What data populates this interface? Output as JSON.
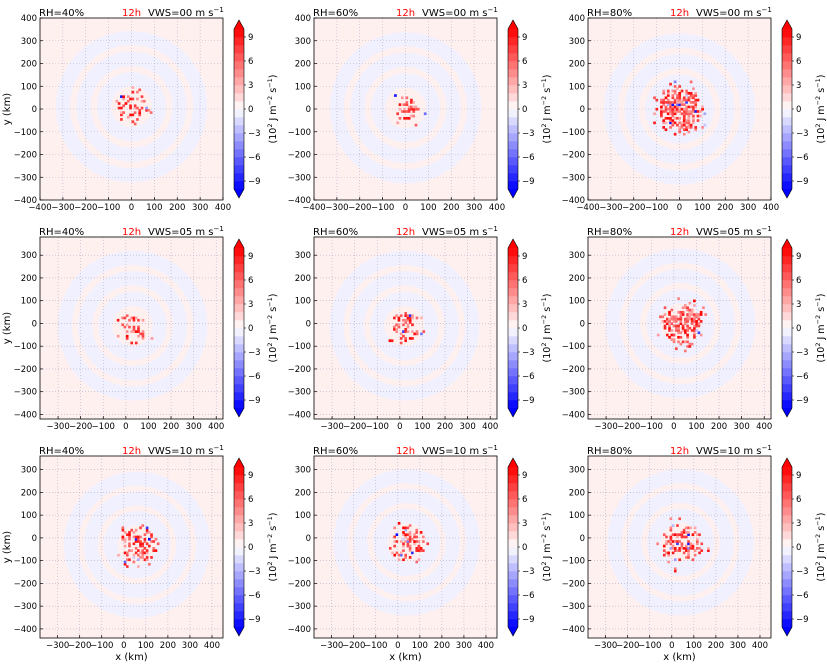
{
  "figure": {
    "time_label": "12h",
    "xlabel": "x (km)",
    "ylabel": "y (km)",
    "colorbar_label_base": "(10",
    "colorbar_label_exp": "2",
    "colorbar_label_unit": " J m",
    "colorbar_label_exp2": "−2",
    "colorbar_label_unit2": " s",
    "colorbar_label_exp3": "−1",
    "colorbar_label_end": ")",
    "colors": {
      "positive": "#ff0000",
      "negative": "#0000ff",
      "background_positive": "#fff0f0",
      "background_negative": "#eef0ff",
      "time_label": "#ff0000",
      "grid": "#b0b0c8"
    }
  },
  "colorbar": {
    "ticks": [
      "9",
      "6",
      "3",
      "0",
      "−3",
      "−6",
      "−9"
    ],
    "tick_values": [
      9,
      6,
      3,
      0,
      -3,
      -6,
      -9
    ],
    "levels": [
      -10,
      -9,
      -8,
      -7,
      -6,
      -5,
      -4,
      -3,
      -2,
      -1,
      0,
      1,
      2,
      3,
      4,
      5,
      6,
      7,
      8,
      9,
      10
    ]
  },
  "chart_data": [
    {
      "type": "heatmap",
      "rh": "RH=40%",
      "vws": "VWS=00 m s",
      "vws_exp": "−1",
      "xlim": [
        -400,
        400
      ],
      "ylim": [
        -400,
        400
      ],
      "xticks": [
        "−400",
        "−300",
        "−200",
        "−100",
        "0",
        "100",
        "200",
        "300",
        "400"
      ],
      "xtick_values": [
        -400,
        -300,
        -200,
        -100,
        0,
        100,
        200,
        300,
        400
      ],
      "yticks": [
        "400",
        "300",
        "200",
        "100",
        "0",
        "−100",
        "−200",
        "−300",
        "−400"
      ],
      "ytick_values": [
        400,
        300,
        200,
        100,
        0,
        -100,
        -200,
        -300,
        -400
      ],
      "core": {
        "cx": 0,
        "cy": 10,
        "r": 60,
        "density": 0.45
      },
      "show_xticklabels": true,
      "show_ylabel": true,
      "show_xlabel": false
    },
    {
      "type": "heatmap",
      "rh": "RH=60%",
      "vws": "VWS=00 m s",
      "vws_exp": "−1",
      "xlim": [
        -400,
        400
      ],
      "ylim": [
        -400,
        400
      ],
      "xticks": [
        "−400",
        "−300",
        "−200",
        "−100",
        "0",
        "100",
        "200",
        "300",
        "400"
      ],
      "xtick_values": [
        -400,
        -300,
        -200,
        -100,
        0,
        100,
        200,
        300,
        400
      ],
      "yticks": [
        "400",
        "300",
        "200",
        "100",
        "0",
        "−100",
        "−200",
        "−300",
        "−400"
      ],
      "ytick_values": [
        400,
        300,
        200,
        100,
        0,
        -100,
        -200,
        -300,
        -400
      ],
      "core": {
        "cx": 0,
        "cy": 5,
        "r": 50,
        "density": 0.4
      },
      "show_xticklabels": true,
      "show_ylabel": false,
      "show_xlabel": false
    },
    {
      "type": "heatmap",
      "rh": "RH=80%",
      "vws": "VWS=00 m s",
      "vws_exp": "−1",
      "xlim": [
        -400,
        400
      ],
      "ylim": [
        -400,
        400
      ],
      "xticks": [
        "−400",
        "−300",
        "−200",
        "−100",
        "0",
        "100",
        "200",
        "300",
        "400"
      ],
      "xtick_values": [
        -400,
        -300,
        -200,
        -100,
        0,
        100,
        200,
        300,
        400
      ],
      "yticks": [
        "400",
        "300",
        "200",
        "100",
        "0",
        "−100",
        "−200",
        "−300",
        "−400"
      ],
      "ytick_values": [
        400,
        300,
        200,
        100,
        0,
        -100,
        -200,
        -300,
        -400
      ],
      "core": {
        "cx": 0,
        "cy": 0,
        "r": 95,
        "density": 0.85
      },
      "show_xticklabels": true,
      "show_ylabel": false,
      "show_xlabel": false
    },
    {
      "type": "heatmap",
      "rh": "RH=40%",
      "vws": "VWS=05 m s",
      "vws_exp": "−1",
      "xlim": [
        -380,
        430
      ],
      "ylim": [
        -420,
        380
      ],
      "xticks": [
        "−300",
        "−200",
        "−100",
        "0",
        "100",
        "200",
        "300",
        "400"
      ],
      "xtick_values": [
        -300,
        -200,
        -100,
        0,
        100,
        200,
        300,
        400
      ],
      "yticks": [
        "300",
        "200",
        "100",
        "0",
        "−100",
        "−200",
        "−300",
        "−400"
      ],
      "ytick_values": [
        300,
        200,
        100,
        0,
        -100,
        -200,
        -300,
        -400
      ],
      "core": {
        "cx": 30,
        "cy": -10,
        "r": 60,
        "density": 0.4
      },
      "show_xticklabels": true,
      "show_ylabel": true,
      "show_xlabel": false
    },
    {
      "type": "heatmap",
      "rh": "RH=60%",
      "vws": "VWS=05 m s",
      "vws_exp": "−1",
      "xlim": [
        -380,
        430
      ],
      "ylim": [
        -420,
        380
      ],
      "xticks": [
        "−300",
        "−200",
        "−100",
        "0",
        "100",
        "200",
        "300",
        "400"
      ],
      "xtick_values": [
        -300,
        -200,
        -100,
        0,
        100,
        200,
        300,
        400
      ],
      "yticks": [
        "300",
        "200",
        "100",
        "0",
        "−100",
        "−200",
        "−300",
        "−400"
      ],
      "ytick_values": [
        300,
        200,
        100,
        0,
        -100,
        -200,
        -300,
        -400
      ],
      "core": {
        "cx": 20,
        "cy": -10,
        "r": 60,
        "density": 0.5
      },
      "show_xticklabels": true,
      "show_ylabel": false,
      "show_xlabel": false
    },
    {
      "type": "heatmap",
      "rh": "RH=80%",
      "vws": "VWS=05 m s",
      "vws_exp": "−1",
      "xlim": [
        -380,
        430
      ],
      "ylim": [
        -420,
        380
      ],
      "xticks": [
        "−300",
        "−200",
        "−100",
        "0",
        "100",
        "200",
        "300",
        "400"
      ],
      "xtick_values": [
        -300,
        -200,
        -100,
        0,
        100,
        200,
        300,
        400
      ],
      "yticks": [
        "300",
        "200",
        "100",
        "0",
        "−100",
        "−200",
        "−300",
        "−400"
      ],
      "ytick_values": [
        300,
        200,
        100,
        0,
        -100,
        -200,
        -300,
        -400
      ],
      "core": {
        "cx": 30,
        "cy": 0,
        "r": 85,
        "density": 0.75
      },
      "show_xticklabels": true,
      "show_ylabel": false,
      "show_xlabel": false
    },
    {
      "type": "heatmap",
      "rh": "RH=40%",
      "vws": "VWS=10 m s",
      "vws_exp": "−1",
      "xlim": [
        -380,
        450
      ],
      "ylim": [
        -440,
        360
      ],
      "xticks": [
        "−300",
        "−200",
        "−100",
        "0",
        "100",
        "200",
        "300",
        "400"
      ],
      "xtick_values": [
        -300,
        -200,
        -100,
        0,
        100,
        200,
        300,
        400
      ],
      "yticks": [
        "300",
        "200",
        "100",
        "0",
        "−100",
        "−200",
        "−300",
        "−400"
      ],
      "ytick_values": [
        300,
        200,
        100,
        0,
        -100,
        -200,
        -300,
        -400
      ],
      "core": {
        "cx": 60,
        "cy": -30,
        "r": 80,
        "density": 0.5
      },
      "show_xticklabels": true,
      "show_ylabel": true,
      "show_xlabel": true
    },
    {
      "type": "heatmap",
      "rh": "RH=60%",
      "vws": "VWS=10 m s",
      "vws_exp": "−1",
      "xlim": [
        -380,
        450
      ],
      "ylim": [
        -440,
        360
      ],
      "xticks": [
        "−300",
        "−200",
        "−100",
        "0",
        "100",
        "200",
        "300",
        "400"
      ],
      "xtick_values": [
        -300,
        -200,
        -100,
        0,
        100,
        200,
        300,
        400
      ],
      "yticks": [
        "300",
        "200",
        "100",
        "0",
        "−100",
        "−200",
        "−300",
        "−400"
      ],
      "ytick_values": [
        300,
        200,
        100,
        0,
        -100,
        -200,
        -300,
        -400
      ],
      "core": {
        "cx": 40,
        "cy": -20,
        "r": 70,
        "density": 0.5
      },
      "show_xticklabels": true,
      "show_ylabel": false,
      "show_xlabel": true
    },
    {
      "type": "heatmap",
      "rh": "RH=80%",
      "vws": "VWS=10 m s",
      "vws_exp": "−1",
      "xlim": [
        -380,
        450
      ],
      "ylim": [
        -440,
        360
      ],
      "xticks": [
        "−300",
        "−200",
        "−100",
        "0",
        "100",
        "200",
        "300",
        "400"
      ],
      "xtick_values": [
        -300,
        -200,
        -100,
        0,
        100,
        200,
        300,
        400
      ],
      "yticks": [
        "300",
        "200",
        "100",
        "0",
        "−100",
        "−200",
        "−300",
        "−400"
      ],
      "ytick_values": [
        300,
        200,
        100,
        0,
        -100,
        -200,
        -300,
        -400
      ],
      "core": {
        "cx": 40,
        "cy": -20,
        "r": 90,
        "density": 0.45
      },
      "show_xticklabels": true,
      "show_ylabel": false,
      "show_xlabel": true
    }
  ]
}
